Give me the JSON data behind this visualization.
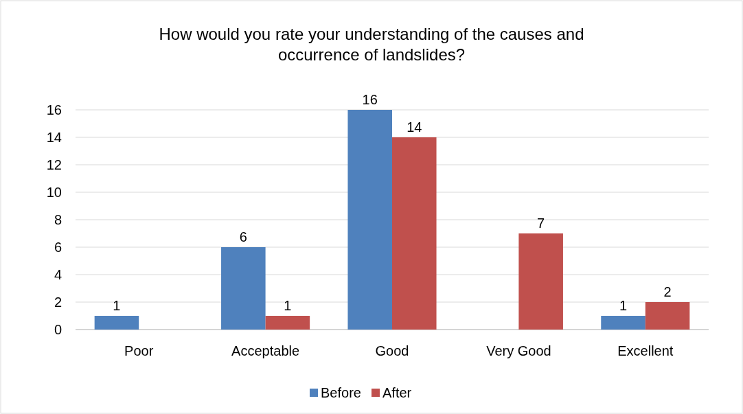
{
  "chart_data": {
    "type": "bar",
    "title": "How would you rate your understanding of the causes and occurrence of landslides?",
    "categories": [
      "Poor",
      "Acceptable",
      "Good",
      "Very Good",
      "Excellent"
    ],
    "series": [
      {
        "name": "Before",
        "color": "#4f81bd",
        "values": [
          1,
          6,
          16,
          null,
          1
        ]
      },
      {
        "name": "After",
        "color": "#c0504d",
        "values": [
          null,
          1,
          14,
          7,
          2
        ]
      }
    ],
    "ylim": [
      0,
      16
    ],
    "yticks": [
      0,
      2,
      4,
      6,
      8,
      10,
      12,
      14,
      16
    ],
    "grid": "y",
    "legend": "bottom",
    "data_labels": true
  }
}
